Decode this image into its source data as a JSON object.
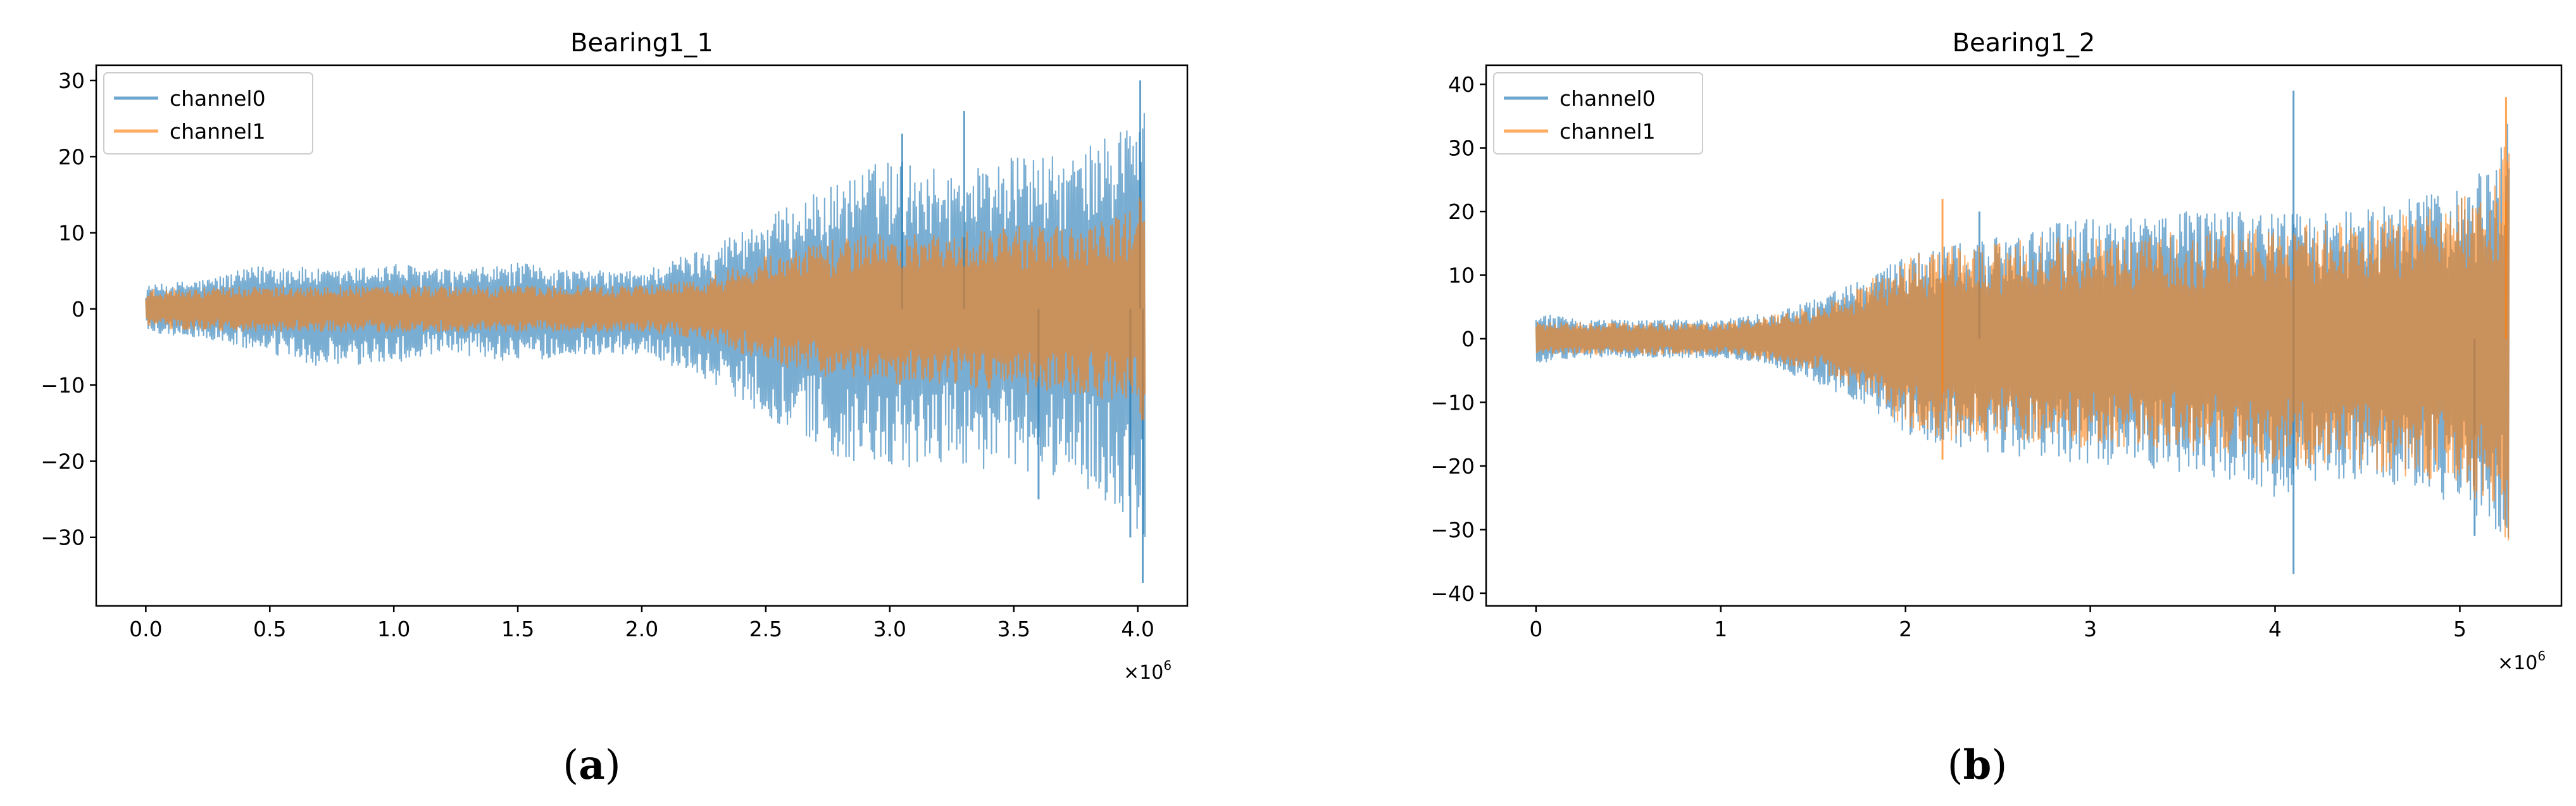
{
  "chart_data": [
    {
      "type": "line",
      "title": "Bearing1_1",
      "xlabel": "",
      "ylabel": "",
      "x_multiplier": "×10",
      "x_multiplier_exp": "6",
      "xlim": [
        -0.2,
        4.2
      ],
      "ylim": [
        -39,
        32
      ],
      "xticks": [
        0.0,
        0.5,
        1.0,
        1.5,
        2.0,
        2.5,
        3.0,
        3.5,
        4.0
      ],
      "xtick_labels": [
        "0.0",
        "0.5",
        "1.0",
        "1.5",
        "2.0",
        "2.5",
        "3.0",
        "3.5",
        "4.0"
      ],
      "yticks": [
        -30,
        -20,
        -10,
        0,
        10,
        20,
        30
      ],
      "ytick_labels": [
        "−30",
        "−20",
        "−10",
        "0",
        "10",
        "20",
        "30"
      ],
      "legend": "top-left",
      "grid": false,
      "series": [
        {
          "name": "channel0",
          "color": "#1f77b4",
          "x": [
            0.0,
            0.25,
            0.5,
            0.75,
            1.0,
            1.25,
            1.5,
            1.75,
            2.0,
            2.25,
            2.5,
            2.75,
            3.0,
            3.25,
            3.5,
            3.75,
            4.0,
            4.03
          ],
          "upper": [
            3,
            4,
            6,
            5,
            6,
            5,
            6,
            5,
            5,
            8,
            12,
            16,
            20,
            18,
            20,
            20,
            26,
            30
          ],
          "lower": [
            -3,
            -4,
            -6,
            -8,
            -7,
            -6,
            -7,
            -6,
            -6,
            -9,
            -14,
            -19,
            -22,
            -20,
            -22,
            -22,
            -30,
            -36
          ],
          "spikes": [
            {
              "x": 3.05,
              "value": 23
            },
            {
              "x": 3.3,
              "value": 26
            },
            {
              "x": 3.97,
              "value": -30
            },
            {
              "x": 4.01,
              "value": 30
            },
            {
              "x": 4.02,
              "value": -36
            },
            {
              "x": 3.6,
              "value": -25
            }
          ]
        },
        {
          "name": "channel1",
          "color": "#ff7f0e",
          "x": [
            0.0,
            0.25,
            0.5,
            0.75,
            1.0,
            1.25,
            1.5,
            1.75,
            2.0,
            2.25,
            2.5,
            2.75,
            3.0,
            3.25,
            3.5,
            3.75,
            4.0,
            4.03
          ],
          "upper": [
            2.5,
            2.8,
            3,
            3,
            3,
            3,
            3,
            3,
            3,
            4,
            7,
            9,
            10,
            10,
            11,
            11,
            13,
            22
          ],
          "lower": [
            -2.5,
            -2.8,
            -3,
            -3,
            -3,
            -3,
            -3,
            -3,
            -3,
            -4,
            -7,
            -9,
            -10,
            -10,
            -11,
            -11,
            -13,
            -21
          ]
        }
      ]
    },
    {
      "type": "line",
      "title": "Bearing1_2",
      "xlabel": "",
      "ylabel": "",
      "x_multiplier": "×10",
      "x_multiplier_exp": "6",
      "xlim": [
        -0.27,
        5.55
      ],
      "ylim": [
        -42,
        43
      ],
      "xticks": [
        0,
        1,
        2,
        3,
        4,
        5
      ],
      "xtick_labels": [
        "0",
        "1",
        "2",
        "3",
        "4",
        "5"
      ],
      "yticks": [
        -40,
        -30,
        -20,
        -10,
        0,
        10,
        20,
        30,
        40
      ],
      "ytick_labels": [
        "−40",
        "−30",
        "−20",
        "−10",
        "0",
        "10",
        "20",
        "30",
        "40"
      ],
      "legend": "top-left",
      "grid": false,
      "series": [
        {
          "name": "channel0",
          "color": "#1f77b4",
          "x": [
            0.0,
            0.25,
            0.5,
            0.75,
            1.0,
            1.25,
            1.5,
            1.75,
            2.0,
            2.25,
            2.5,
            2.75,
            3.0,
            3.25,
            3.5,
            3.75,
            4.0,
            4.25,
            4.5,
            4.75,
            5.0,
            5.2,
            5.27
          ],
          "upper": [
            4,
            3,
            3,
            3,
            3,
            4,
            6,
            9,
            13,
            15,
            16,
            18,
            19,
            19,
            20,
            20,
            20,
            20,
            21,
            22,
            24,
            28,
            36
          ],
          "lower": [
            -4,
            -3,
            -3,
            -3,
            -3,
            -4,
            -7,
            -10,
            -15,
            -17,
            -18,
            -19,
            -20,
            -20,
            -21,
            -22,
            -25,
            -22,
            -22,
            -24,
            -26,
            -30,
            -34
          ],
          "spikes": [
            {
              "x": 4.1,
              "value": 39
            },
            {
              "x": 4.1,
              "value": -37
            },
            {
              "x": 5.08,
              "value": -31
            },
            {
              "x": 2.4,
              "value": 20
            }
          ]
        },
        {
          "name": "channel1",
          "color": "#ff7f0e",
          "x": [
            0.0,
            0.25,
            0.5,
            0.75,
            1.0,
            1.25,
            1.5,
            1.75,
            2.0,
            2.25,
            2.5,
            2.75,
            3.0,
            3.25,
            3.5,
            3.75,
            4.0,
            4.25,
            4.5,
            4.75,
            5.0,
            5.2,
            5.27
          ],
          "upper": [
            2.5,
            2.5,
            2.5,
            2.5,
            2.5,
            3.5,
            5,
            8,
            13,
            15,
            15,
            16,
            16,
            16,
            17,
            17,
            18,
            18,
            19,
            20,
            22,
            26,
            37
          ],
          "lower": [
            -2.5,
            -2.5,
            -2.5,
            -2.5,
            -2.5,
            -3.5,
            -5,
            -8,
            -14,
            -16,
            -16,
            -17,
            -17,
            -17,
            -18,
            -18,
            -20,
            -20,
            -21,
            -22,
            -24,
            -28,
            -33
          ],
          "spikes": [
            {
              "x": 2.2,
              "value": 22
            },
            {
              "x": 2.2,
              "value": -19
            },
            {
              "x": 5.25,
              "value": 38
            }
          ]
        }
      ]
    }
  ],
  "captions": [
    {
      "letter": "a"
    },
    {
      "letter": "b"
    }
  ]
}
